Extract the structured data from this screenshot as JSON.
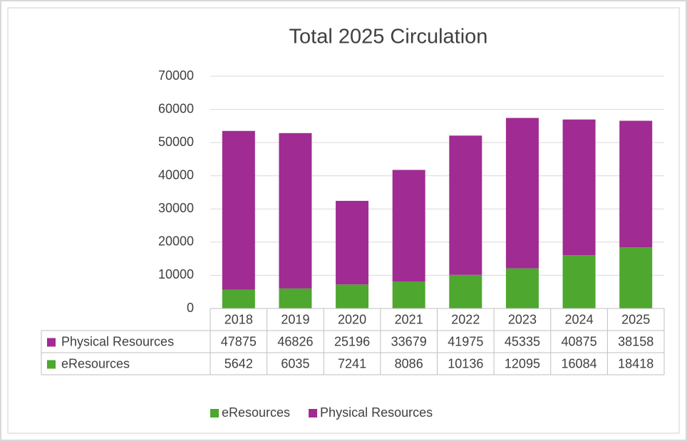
{
  "chart_data": {
    "type": "stacked_bar",
    "title": "Total 2025 Circulation",
    "categories": [
      "2018",
      "2019",
      "2020",
      "2021",
      "2022",
      "2023",
      "2024",
      "2025"
    ],
    "series": [
      {
        "name": "eResources",
        "color": "#4ea72e",
        "values": [
          5642,
          6035,
          7241,
          8086,
          10136,
          12095,
          16084,
          18418
        ]
      },
      {
        "name": "Physical Resources",
        "color": "#a02b93",
        "values": [
          47875,
          46826,
          25196,
          33679,
          41975,
          45335,
          40875,
          38158
        ]
      }
    ],
    "ylim": [
      0,
      70000
    ],
    "yticks": [
      0,
      10000,
      20000,
      30000,
      40000,
      50000,
      60000,
      70000
    ],
    "grid": true,
    "legend": "bottom",
    "data_table": true
  }
}
